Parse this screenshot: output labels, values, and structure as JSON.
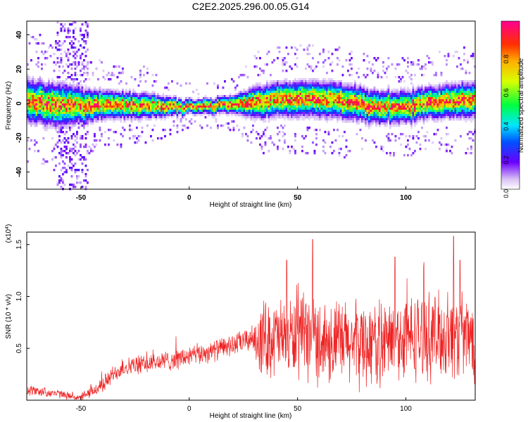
{
  "title": "C2E2.2025.296.00.05.G14",
  "chart_data": [
    {
      "type": "heatmap",
      "xlabel": "Height of straight line (km)",
      "ylabel": "Frequency (Hz)",
      "xlim": [
        -75,
        132
      ],
      "ylim": [
        -50,
        48
      ],
      "xticks": [
        -50,
        0,
        50,
        100
      ],
      "yticks": [
        -40,
        -20,
        0,
        20,
        40
      ],
      "colorbar": {
        "label": "Normalized spectral amplitude",
        "range": [
          0,
          1
        ],
        "ticks": [
          "0.0",
          "0.2",
          "0.4",
          "0.6",
          "0.8"
        ],
        "ticks_numeric": [
          0,
          0.2,
          0.4,
          0.6,
          0.8
        ]
      },
      "ridge_center": [
        [
          -75,
          2
        ],
        [
          -60,
          0
        ],
        [
          -50,
          -1
        ],
        [
          -40,
          0
        ],
        [
          -20,
          -1
        ],
        [
          0,
          -1
        ],
        [
          20,
          0
        ],
        [
          30,
          1
        ],
        [
          40,
          3
        ],
        [
          50,
          3
        ],
        [
          60,
          3
        ],
        [
          70,
          2
        ],
        [
          80,
          0
        ],
        [
          90,
          -2
        ],
        [
          100,
          -1
        ],
        [
          110,
          1
        ],
        [
          120,
          2
        ],
        [
          132,
          3
        ]
      ],
      "ridge_width_hz": [
        [
          -75,
          12
        ],
        [
          -60,
          12
        ],
        [
          -50,
          10
        ],
        [
          -40,
          8
        ],
        [
          -20,
          7
        ],
        [
          0,
          4
        ],
        [
          20,
          5
        ],
        [
          30,
          9
        ],
        [
          50,
          10
        ],
        [
          70,
          10
        ],
        [
          90,
          9
        ],
        [
          110,
          9
        ],
        [
          132,
          10
        ]
      ],
      "scatter_region": {
        "x": [
          -62,
          -47
        ],
        "y": [
          -50,
          48
        ]
      }
    },
    {
      "type": "line",
      "xlabel": "Height of straight line (km)",
      "ylabel": "SNR (10 * v/v)",
      "y_multiplier": "(x10^4)",
      "xlim": [
        -75,
        132
      ],
      "ylim": [
        0,
        1.62
      ],
      "xticks": [
        -50,
        0,
        50,
        100
      ],
      "yticks": [
        0.5,
        1.0,
        1.5
      ],
      "ytick_labels": [
        "0.5",
        "1.0",
        "1.5"
      ],
      "color": "#ee2222",
      "trend": [
        [
          -75,
          0.1
        ],
        [
          -60,
          0.06
        ],
        [
          -50,
          0.02
        ],
        [
          -45,
          0.08
        ],
        [
          -40,
          0.15
        ],
        [
          -35,
          0.25
        ],
        [
          -30,
          0.32
        ],
        [
          -20,
          0.35
        ],
        [
          -10,
          0.38
        ],
        [
          0,
          0.42
        ],
        [
          10,
          0.47
        ],
        [
          20,
          0.53
        ],
        [
          30,
          0.6
        ],
        [
          40,
          0.6
        ],
        [
          50,
          0.6
        ],
        [
          60,
          0.58
        ],
        [
          70,
          0.55
        ],
        [
          80,
          0.55
        ],
        [
          90,
          0.55
        ],
        [
          100,
          0.6
        ],
        [
          110,
          0.62
        ],
        [
          120,
          0.62
        ],
        [
          132,
          0.6
        ]
      ],
      "spread": [
        [
          -75,
          0.05
        ],
        [
          -50,
          0.03
        ],
        [
          -40,
          0.08
        ],
        [
          -20,
          0.09
        ],
        [
          0,
          0.1
        ],
        [
          20,
          0.1
        ],
        [
          30,
          0.12
        ],
        [
          32,
          0.35
        ],
        [
          60,
          0.4
        ],
        [
          100,
          0.4
        ],
        [
          132,
          0.4
        ]
      ],
      "peaks": [
        [
          45,
          1.35
        ],
        [
          57,
          1.55
        ],
        [
          95,
          1.38
        ],
        [
          122,
          1.58
        ],
        [
          125,
          1.35
        ]
      ]
    }
  ]
}
